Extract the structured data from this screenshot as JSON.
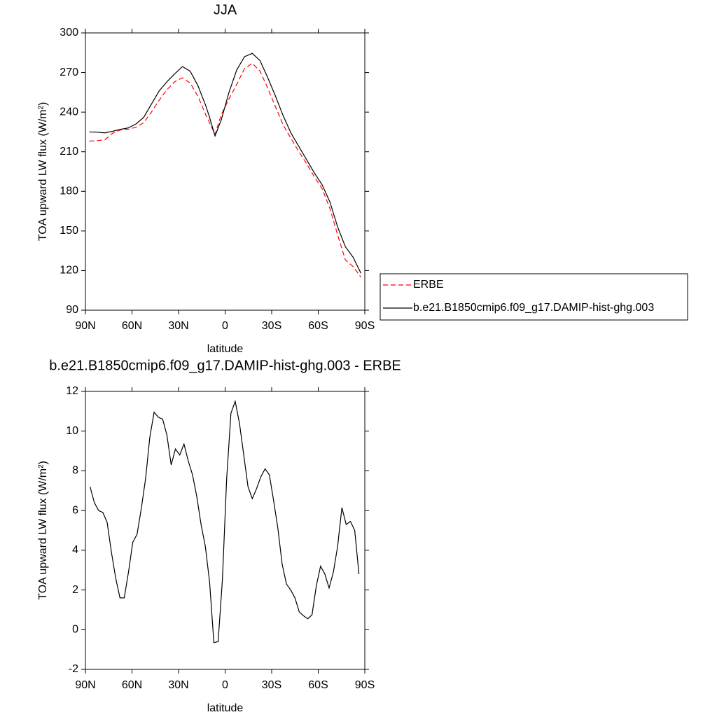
{
  "chart_data": [
    {
      "type": "line",
      "title": "JJA",
      "x_label": "latitude",
      "y_label": "TOA upward LW flux (W/m²)",
      "x": [
        87.5,
        82.5,
        77.5,
        72.5,
        67.5,
        62.5,
        57.5,
        52.5,
        47.5,
        42.5,
        37.5,
        32.5,
        27.5,
        22.5,
        17.5,
        12.5,
        10,
        6.5,
        2.5,
        -2.5,
        -7.5,
        -12.5,
        -17.5,
        -22.5,
        -27.5,
        -32.5,
        -37.5,
        -42.5,
        -47.5,
        -52.5,
        -57.5,
        -62.5,
        -67.5,
        -72.5,
        -77.5,
        -82.5,
        -87.5
      ],
      "series": [
        {
          "name": "ERBE",
          "color": "#ff0000",
          "dashed": true,
          "values": [
            218,
            218.5,
            219,
            224,
            226.5,
            227,
            228.5,
            232,
            240,
            249,
            257,
            263,
            266,
            262,
            252,
            238,
            232,
            223,
            238,
            250,
            261,
            273,
            277,
            271,
            258,
            244,
            230,
            220,
            210,
            201,
            191,
            182,
            167,
            147,
            128,
            123,
            115
          ]
        },
        {
          "name": "b.e21.B1850cmip6.f09_g17.DAMIP-hist-ghg.003",
          "color": "#000000",
          "dashed": false,
          "values": [
            225,
            224.8,
            224.3,
            225.5,
            227,
            228,
            231,
            236,
            246,
            256,
            263,
            269,
            274.5,
            271,
            260,
            245,
            236,
            222,
            234,
            255,
            272,
            282,
            284.5,
            279,
            266,
            252,
            237,
            224,
            214,
            204,
            194,
            185,
            172,
            153,
            138,
            130,
            118
          ]
        }
      ],
      "xlim": [
        90,
        -90
      ],
      "xticks": [
        {
          "value": 90,
          "label": "90N"
        },
        {
          "value": 60,
          "label": "60N"
        },
        {
          "value": 30,
          "label": "30N"
        },
        0,
        {
          "value": -30,
          "label": "30S"
        },
        {
          "value": -60,
          "label": "60S"
        },
        {
          "value": -90,
          "label": "90S"
        }
      ],
      "ylim": [
        90,
        300
      ],
      "yticks": [
        90,
        120,
        150,
        180,
        210,
        240,
        270,
        300
      ],
      "legend": "right"
    },
    {
      "type": "line",
      "title": "b.e21.B1850cmip6.f09_g17.DAMIP-hist-ghg.003 - ERBE",
      "x_label": "latitude",
      "y_label": "TOA upward LW flux (W/m²)",
      "x": [
        87,
        84.25,
        81.5,
        78.75,
        76,
        73.25,
        70.5,
        67.75,
        65,
        62.25,
        59.5,
        56.75,
        54,
        51.25,
        48.5,
        45.75,
        43,
        40.25,
        37.5,
        34.75,
        32,
        29.25,
        26.5,
        23.75,
        21,
        18.25,
        15.5,
        12.75,
        10,
        7.25,
        4.5,
        1.75,
        -1,
        -3.75,
        -6.5,
        -9.25,
        -12,
        -14.75,
        -17.5,
        -20.25,
        -23,
        -25.75,
        -28.5,
        -31.25,
        -34,
        -36.75,
        -39.5,
        -42.25,
        -45,
        -47.75,
        -50.5,
        -53.25,
        -56,
        -58.75,
        -61.5,
        -64.25,
        -67,
        -69.75,
        -72.5,
        -75.25,
        -78,
        -80.75,
        -83.5,
        -86.25
      ],
      "series": [
        {
          "name": null,
          "color": "#000000",
          "dashed": false,
          "values": [
            7.2,
            6.4,
            6.0,
            5.9,
            5.4,
            3.9,
            2.6,
            1.6,
            1.6,
            2.9,
            4.4,
            4.8,
            6.1,
            7.6,
            9.7,
            10.95,
            10.7,
            10.6,
            9.8,
            8.3,
            9.1,
            8.8,
            9.35,
            8.5,
            7.8,
            6.7,
            5.3,
            4.2,
            2.4,
            -0.65,
            -0.6,
            2.5,
            7.6,
            10.9,
            11.5,
            10.4,
            8.8,
            7.2,
            6.6,
            7.1,
            7.7,
            8.1,
            7.8,
            6.5,
            5.1,
            3.3,
            2.3,
            2.0,
            1.6,
            0.9,
            0.7,
            0.55,
            0.75,
            2.2,
            3.2,
            2.8,
            2.1,
            2.9,
            4.2,
            6.15,
            5.3,
            5.45,
            5.0,
            2.8
          ]
        }
      ],
      "xlim": [
        90,
        -90
      ],
      "xticks": [
        {
          "value": 90,
          "label": "90N"
        },
        {
          "value": 60,
          "label": "60N"
        },
        {
          "value": 30,
          "label": "30N"
        },
        0,
        {
          "value": -30,
          "label": "30S"
        },
        {
          "value": -60,
          "label": "60S"
        },
        {
          "value": -90,
          "label": "90S"
        }
      ],
      "ylim": [
        -2,
        12
      ],
      "yticks": [
        -2,
        0,
        2,
        4,
        6,
        8,
        10,
        12
      ]
    }
  ]
}
